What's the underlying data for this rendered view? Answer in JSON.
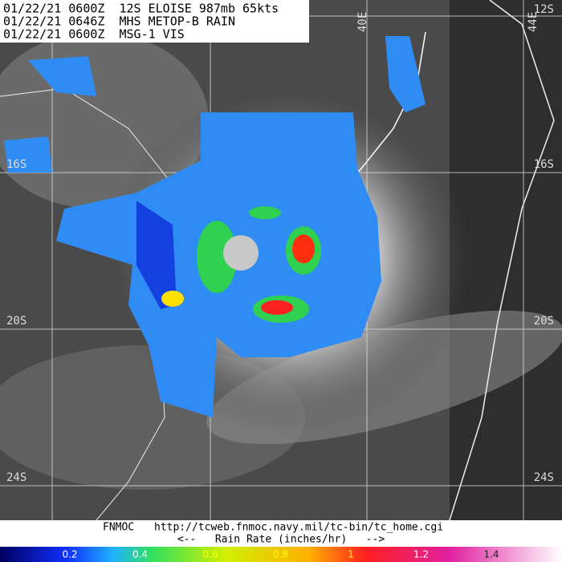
{
  "header": {
    "lines": [
      "01/22/21 0600Z  12S ELOISE 987mb 65kts",
      "01/22/21 0646Z  MHS METOP-B RAIN",
      "01/22/21 0600Z  MSG-1 VIS"
    ]
  },
  "grid_labels": {
    "latitude_right": [
      "12S",
      "16S",
      "20S",
      "24S"
    ],
    "latitude_left": [
      "16S",
      "20S",
      "24S"
    ],
    "longitude": [
      "40E",
      "44E"
    ]
  },
  "footer": {
    "source": "FNMOC",
    "url": "http://tcweb.fnmoc.navy.mil/tc-bin/tc_home.cgi",
    "scale_caption": "<--   Rain Rate (inches/hr)   -->"
  },
  "colorbar": {
    "ticks": [
      0.2,
      0.4,
      0.6,
      0.8,
      1,
      1.2,
      1.4
    ]
  }
}
